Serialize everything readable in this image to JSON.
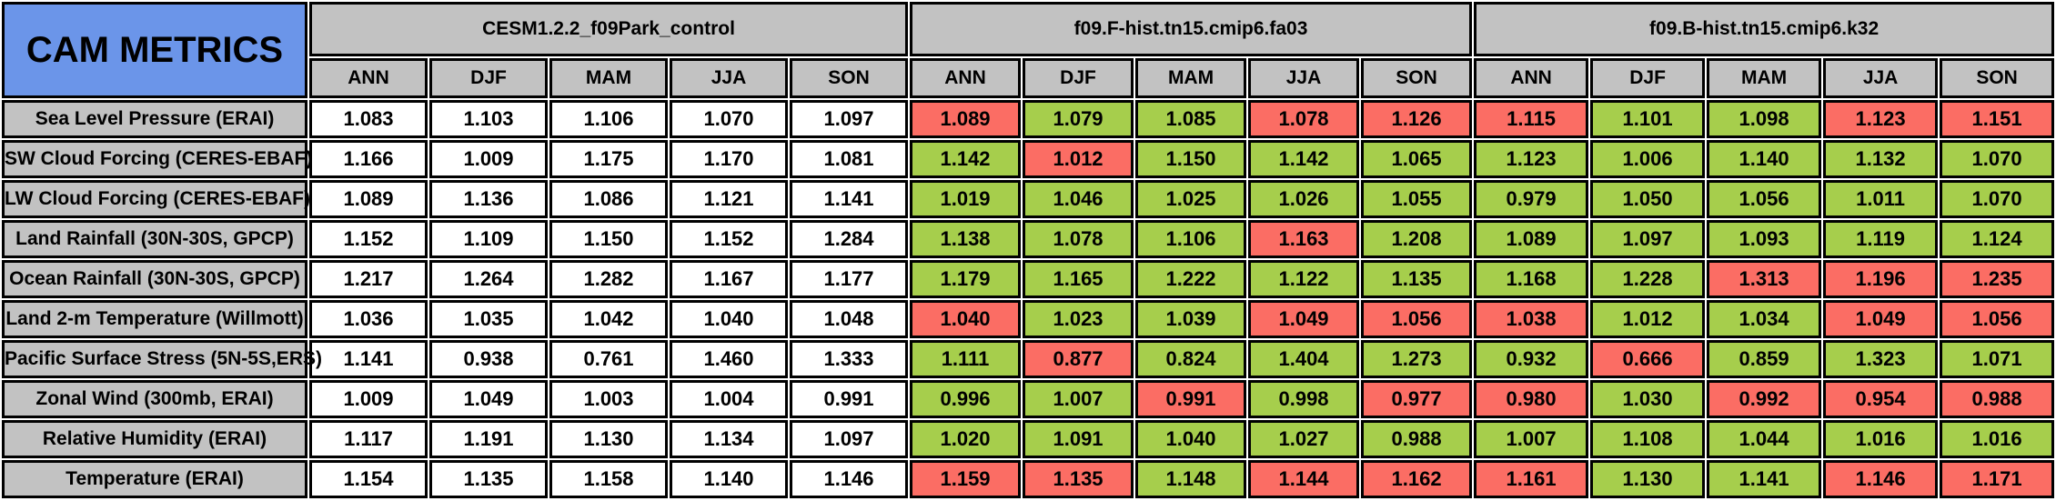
{
  "page": {
    "title": "CAM METRICS"
  },
  "colors": {
    "header_gray": "#C2C2C2",
    "title_blue": "#6B95E9",
    "better_green": "#A6CE4C",
    "worse_red": "#FB6D64",
    "neutral_white": "#FFFFFF",
    "border_black": "#000000"
  },
  "chart_data": {
    "type": "table",
    "title": "CAM METRICS",
    "groups": [
      "CESM1.2.2_f09Park_control",
      "f09.F-hist.tn15.cmip6.fa03",
      "f09.B-hist.tn15.cmip6.k32"
    ],
    "seasons": [
      "ANN",
      "DJF",
      "MAM",
      "JJA",
      "SON"
    ],
    "cell_color_key": [
      "white",
      "green",
      "red"
    ],
    "rows": [
      {
        "label": "Sea Level Pressure (ERAI)",
        "values": [
          [
            "1.083",
            "1.103",
            "1.106",
            "1.070",
            "1.097"
          ],
          [
            "1.089",
            "1.079",
            "1.085",
            "1.078",
            "1.126"
          ],
          [
            "1.115",
            "1.101",
            "1.098",
            "1.123",
            "1.151"
          ]
        ],
        "colors": [
          [
            "white",
            "white",
            "white",
            "white",
            "white"
          ],
          [
            "red",
            "green",
            "green",
            "red",
            "red"
          ],
          [
            "red",
            "green",
            "green",
            "red",
            "red"
          ]
        ]
      },
      {
        "label": "SW Cloud Forcing (CERES-EBAF)",
        "values": [
          [
            "1.166",
            "1.009",
            "1.175",
            "1.170",
            "1.081"
          ],
          [
            "1.142",
            "1.012",
            "1.150",
            "1.142",
            "1.065"
          ],
          [
            "1.123",
            "1.006",
            "1.140",
            "1.132",
            "1.070"
          ]
        ],
        "colors": [
          [
            "white",
            "white",
            "white",
            "white",
            "white"
          ],
          [
            "green",
            "red",
            "green",
            "green",
            "green"
          ],
          [
            "green",
            "green",
            "green",
            "green",
            "green"
          ]
        ]
      },
      {
        "label": "LW Cloud Forcing (CERES-EBAF)",
        "values": [
          [
            "1.089",
            "1.136",
            "1.086",
            "1.121",
            "1.141"
          ],
          [
            "1.019",
            "1.046",
            "1.025",
            "1.026",
            "1.055"
          ],
          [
            "0.979",
            "1.050",
            "1.056",
            "1.011",
            "1.070"
          ]
        ],
        "colors": [
          [
            "white",
            "white",
            "white",
            "white",
            "white"
          ],
          [
            "green",
            "green",
            "green",
            "green",
            "green"
          ],
          [
            "green",
            "green",
            "green",
            "green",
            "green"
          ]
        ]
      },
      {
        "label": "Land Rainfall (30N-30S, GPCP)",
        "values": [
          [
            "1.152",
            "1.109",
            "1.150",
            "1.152",
            "1.284"
          ],
          [
            "1.138",
            "1.078",
            "1.106",
            "1.163",
            "1.208"
          ],
          [
            "1.089",
            "1.097",
            "1.093",
            "1.119",
            "1.124"
          ]
        ],
        "colors": [
          [
            "white",
            "white",
            "white",
            "white",
            "white"
          ],
          [
            "green",
            "green",
            "green",
            "red",
            "green"
          ],
          [
            "green",
            "green",
            "green",
            "green",
            "green"
          ]
        ]
      },
      {
        "label": "Ocean Rainfall (30N-30S, GPCP)",
        "values": [
          [
            "1.217",
            "1.264",
            "1.282",
            "1.167",
            "1.177"
          ],
          [
            "1.179",
            "1.165",
            "1.222",
            "1.122",
            "1.135"
          ],
          [
            "1.168",
            "1.228",
            "1.313",
            "1.196",
            "1.235"
          ]
        ],
        "colors": [
          [
            "white",
            "white",
            "white",
            "white",
            "white"
          ],
          [
            "green",
            "green",
            "green",
            "green",
            "green"
          ],
          [
            "green",
            "green",
            "red",
            "red",
            "red"
          ]
        ]
      },
      {
        "label": "Land 2-m Temperature (Willmott)",
        "values": [
          [
            "1.036",
            "1.035",
            "1.042",
            "1.040",
            "1.048"
          ],
          [
            "1.040",
            "1.023",
            "1.039",
            "1.049",
            "1.056"
          ],
          [
            "1.038",
            "1.012",
            "1.034",
            "1.049",
            "1.056"
          ]
        ],
        "colors": [
          [
            "white",
            "white",
            "white",
            "white",
            "white"
          ],
          [
            "red",
            "green",
            "green",
            "red",
            "red"
          ],
          [
            "red",
            "green",
            "green",
            "red",
            "red"
          ]
        ]
      },
      {
        "label": "Pacific Surface Stress (5N-5S,ERS)",
        "values": [
          [
            "1.141",
            "0.938",
            "0.761",
            "1.460",
            "1.333"
          ],
          [
            "1.111",
            "0.877",
            "0.824",
            "1.404",
            "1.273"
          ],
          [
            "0.932",
            "0.666",
            "0.859",
            "1.323",
            "1.071"
          ]
        ],
        "colors": [
          [
            "white",
            "white",
            "white",
            "white",
            "white"
          ],
          [
            "green",
            "red",
            "green",
            "green",
            "green"
          ],
          [
            "green",
            "red",
            "green",
            "green",
            "green"
          ]
        ]
      },
      {
        "label": "Zonal Wind (300mb, ERAI)",
        "values": [
          [
            "1.009",
            "1.049",
            "1.003",
            "1.004",
            "0.991"
          ],
          [
            "0.996",
            "1.007",
            "0.991",
            "0.998",
            "0.977"
          ],
          [
            "0.980",
            "1.030",
            "0.992",
            "0.954",
            "0.988"
          ]
        ],
        "colors": [
          [
            "white",
            "white",
            "white",
            "white",
            "white"
          ],
          [
            "green",
            "green",
            "red",
            "green",
            "red"
          ],
          [
            "red",
            "green",
            "red",
            "red",
            "red"
          ]
        ]
      },
      {
        "label": "Relative Humidity (ERAI)",
        "values": [
          [
            "1.117",
            "1.191",
            "1.130",
            "1.134",
            "1.097"
          ],
          [
            "1.020",
            "1.091",
            "1.040",
            "1.027",
            "0.988"
          ],
          [
            "1.007",
            "1.108",
            "1.044",
            "1.016",
            "1.016"
          ]
        ],
        "colors": [
          [
            "white",
            "white",
            "white",
            "white",
            "white"
          ],
          [
            "green",
            "green",
            "green",
            "green",
            "green"
          ],
          [
            "green",
            "green",
            "green",
            "green",
            "green"
          ]
        ]
      },
      {
        "label": "Temperature (ERAI)",
        "values": [
          [
            "1.154",
            "1.135",
            "1.158",
            "1.140",
            "1.146"
          ],
          [
            "1.159",
            "1.135",
            "1.148",
            "1.144",
            "1.162"
          ],
          [
            "1.161",
            "1.130",
            "1.141",
            "1.146",
            "1.171"
          ]
        ],
        "colors": [
          [
            "white",
            "white",
            "white",
            "white",
            "white"
          ],
          [
            "red",
            "red",
            "green",
            "red",
            "red"
          ],
          [
            "red",
            "green",
            "green",
            "red",
            "red"
          ]
        ]
      }
    ]
  }
}
